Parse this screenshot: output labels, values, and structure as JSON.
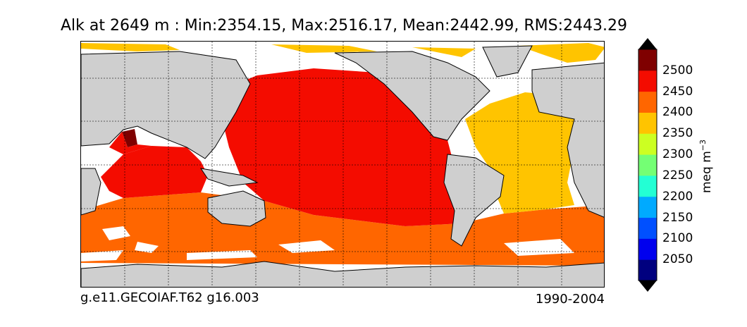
{
  "title": "Alk at 2649 m : Min:2354.15, Max:2516.17, Mean:2442.99, RMS:2443.29",
  "caption_left": "g.e11.GECOIAF.T62 g16.003",
  "caption_right": "1990-2004",
  "colorbar": {
    "unit": "meq m",
    "unit_exponent": "−3",
    "ticks": [
      "2050",
      "2100",
      "2150",
      "2200",
      "2250",
      "2300",
      "2350",
      "2400",
      "2450",
      "2500"
    ],
    "bins": [
      {
        "from": 2000,
        "to": 2050,
        "color": "#00007f"
      },
      {
        "from": 2050,
        "to": 2100,
        "color": "#0000ee"
      },
      {
        "from": 2100,
        "to": 2150,
        "color": "#0050ff"
      },
      {
        "from": 2150,
        "to": 2200,
        "color": "#00aaff"
      },
      {
        "from": 2200,
        "to": 2250,
        "color": "#23ffd4"
      },
      {
        "from": 2250,
        "to": 2300,
        "color": "#74ff74"
      },
      {
        "from": 2300,
        "to": 2350,
        "color": "#ccff22"
      },
      {
        "from": 2350,
        "to": 2400,
        "color": "#ffc400"
      },
      {
        "from": 2400,
        "to": 2450,
        "color": "#ff6600"
      },
      {
        "from": 2450,
        "to": 2500,
        "color": "#f40c00"
      },
      {
        "from": 2500,
        "to": 2550,
        "color": "#7f0000"
      }
    ],
    "under_color": "#000000",
    "over_color": "#000000"
  },
  "map": {
    "land_color": "#cfcfcf",
    "no_data_color": "#ffffff",
    "gridlines": "dashed"
  }
}
